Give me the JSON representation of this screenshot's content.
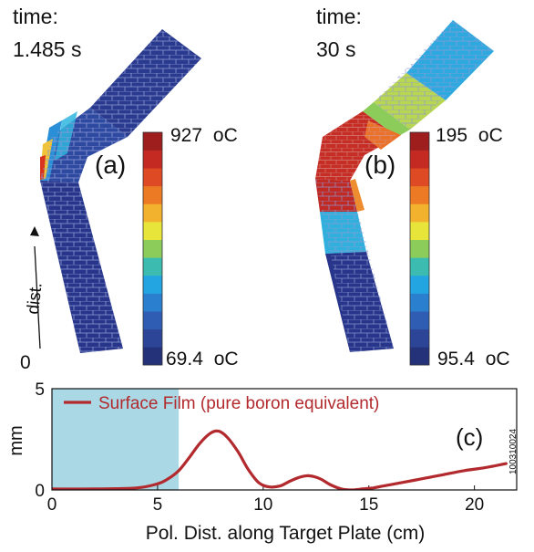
{
  "panel_a": {
    "time_label": "time:",
    "time_value": "1.485 s",
    "letter": "(a)",
    "cbar_max": "927",
    "cbar_min": "69.4",
    "unit": "oC",
    "dist_label": "dist.",
    "dist_zero": "0"
  },
  "panel_b": {
    "time_label": "time:",
    "time_value": "30 s",
    "letter": "(b)",
    "cbar_max": "195",
    "cbar_min": "95.4",
    "unit": "oC"
  },
  "colormap": [
    "#24327a",
    "#2c4596",
    "#2f5db3",
    "#2b7fcf",
    "#22a5e0",
    "#3cbcb0",
    "#8ccc5a",
    "#e8e53a",
    "#f3b22e",
    "#ec7a24",
    "#de4a24",
    "#c52a22",
    "#9e1d1d"
  ],
  "chart_data": {
    "type": "line",
    "title": "",
    "panel_letter": "(c)",
    "xlabel": "Pol. Dist. along Target Plate (cm)",
    "ylabel": "mm",
    "xlim": [
      0,
      22
    ],
    "ylim": [
      0,
      5
    ],
    "xticks": [
      0,
      5,
      10,
      15,
      20
    ],
    "yticks": [
      0,
      5
    ],
    "shaded_region": {
      "x": [
        0,
        6.0
      ],
      "color": "#aad8e4"
    },
    "legend_position": "top-right",
    "annotation": "100310024",
    "series": [
      {
        "name": "Surface Film (pure boron equivalent)",
        "color": "#b22a2e",
        "x": [
          0,
          2,
          4,
          5,
          5.5,
          6,
          6.5,
          7,
          7.5,
          7.9,
          8.3,
          8.8,
          9.3,
          9.8,
          10.3,
          10.8,
          11.3,
          11.8,
          12.2,
          12.7,
          13.2,
          13.7,
          14.2,
          14.7,
          15.2,
          15.7,
          16.5,
          17.5,
          18.5,
          19.5,
          20.5,
          21.5
        ],
        "y": [
          0.05,
          0.05,
          0.1,
          0.3,
          0.55,
          0.95,
          1.6,
          2.3,
          2.8,
          2.9,
          2.6,
          1.9,
          1.0,
          0.35,
          0.15,
          0.2,
          0.45,
          0.65,
          0.7,
          0.55,
          0.25,
          0.05,
          0.0,
          0.05,
          0.1,
          0.2,
          0.35,
          0.55,
          0.75,
          0.95,
          1.1,
          1.3
        ]
      }
    ]
  }
}
